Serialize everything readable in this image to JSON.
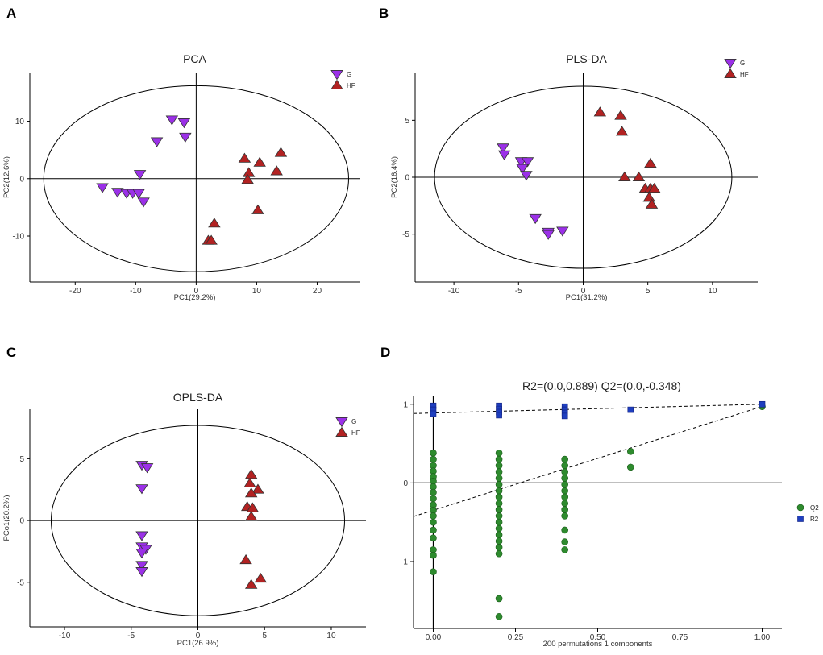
{
  "colors": {
    "G": "#9b30e8",
    "HF": "#b22222",
    "Q2": "#2e8b2e",
    "R2": "#1f3fbf",
    "edge": "#333333"
  },
  "chart_data": [
    {
      "id": "A",
      "panel_label": "A",
      "type": "scatter",
      "title": "PCA",
      "xlabel": "PC1(29.2%)",
      "ylabel": "PC2(12.6%)",
      "xlim": [
        -27.5,
        27
      ],
      "ylim": [
        -18,
        18.5
      ],
      "xticks": [
        -20,
        -10,
        0,
        10,
        20
      ],
      "yticks": [
        -10,
        0,
        10
      ],
      "ellipse": {
        "cx": 0,
        "cy": 0,
        "rx": 25.2,
        "ry": 16.2
      },
      "legend": [
        {
          "label": "G",
          "shape": "triangle-down",
          "color": "#9b30e8"
        },
        {
          "label": "HF",
          "shape": "triangle-up",
          "color": "#b22222"
        }
      ],
      "series": [
        {
          "name": "G",
          "shape": "triangle-down",
          "points": [
            [
              -4,
              10.3
            ],
            [
              -2,
              9.8
            ],
            [
              -1.8,
              7.3
            ],
            [
              -6.5,
              6.5
            ],
            [
              -15.5,
              -1.5
            ],
            [
              -13,
              -2.3
            ],
            [
              -11.5,
              -2.5
            ],
            [
              -10.5,
              -2.5
            ],
            [
              -9.5,
              -2.5
            ],
            [
              -9.3,
              0.8
            ],
            [
              -8.7,
              -4
            ]
          ]
        },
        {
          "name": "HF",
          "shape": "triangle-up",
          "points": [
            [
              8,
              3.5
            ],
            [
              10.5,
              2.8
            ],
            [
              14,
              4.5
            ],
            [
              8.7,
              1
            ],
            [
              13.3,
              1.3
            ],
            [
              8.5,
              -0.2
            ],
            [
              10.2,
              -5.5
            ],
            [
              3,
              -7.8
            ],
            [
              2,
              -10.8
            ],
            [
              2.5,
              -10.8
            ]
          ]
        }
      ]
    },
    {
      "id": "B",
      "panel_label": "B",
      "type": "scatter",
      "title": "PLS-DA",
      "xlabel": "PC1(31.2%)",
      "ylabel": "PC2(16.4%)",
      "xlim": [
        -13,
        13.5
      ],
      "ylim": [
        -9.2,
        9.2
      ],
      "xticks": [
        -10,
        -5,
        0,
        5,
        10
      ],
      "yticks": [
        -5,
        0,
        5
      ],
      "ellipse": {
        "cx": 0,
        "cy": 0,
        "rx": 11.5,
        "ry": 8
      },
      "legend": [
        {
          "label": "G",
          "shape": "triangle-down",
          "color": "#9b30e8"
        },
        {
          "label": "HF",
          "shape": "triangle-up",
          "color": "#b22222"
        }
      ],
      "series": [
        {
          "name": "G",
          "shape": "triangle-down",
          "points": [
            [
              -6.2,
              2.6
            ],
            [
              -6.1,
              2
            ],
            [
              -4.8,
              1.4
            ],
            [
              -4.3,
              1.4
            ],
            [
              -4.7,
              0.8
            ],
            [
              -4.4,
              0.2
            ],
            [
              -3.7,
              -3.6
            ],
            [
              -2.7,
              -4.8
            ],
            [
              -2.7,
              -5
            ],
            [
              -1.6,
              -4.7
            ]
          ]
        },
        {
          "name": "HF",
          "shape": "triangle-up",
          "points": [
            [
              1.3,
              5.7
            ],
            [
              2.9,
              5.4
            ],
            [
              3,
              4
            ],
            [
              5.2,
              1.2
            ],
            [
              3.2,
              0
            ],
            [
              4.3,
              0
            ],
            [
              4.8,
              -1
            ],
            [
              5.2,
              -1
            ],
            [
              5.5,
              -1
            ],
            [
              5.1,
              -1.8
            ],
            [
              5.3,
              -2.4
            ]
          ]
        }
      ]
    },
    {
      "id": "C",
      "panel_label": "C",
      "type": "scatter",
      "title": "OPLS-DA",
      "xlabel": "PC1(26.9%)",
      "ylabel": "PCo1(20.2%)",
      "xlim": [
        -12.6,
        12.6
      ],
      "ylim": [
        -8.6,
        9
      ],
      "xticks": [
        -10,
        -5,
        0,
        5,
        10
      ],
      "yticks": [
        -5,
        0,
        5
      ],
      "ellipse": {
        "cx": 0,
        "cy": 0,
        "rx": 11,
        "ry": 7.7
      },
      "legend": [
        {
          "label": "G",
          "shape": "triangle-down",
          "color": "#9b30e8"
        },
        {
          "label": "HF",
          "shape": "triangle-up",
          "color": "#b22222"
        }
      ],
      "series": [
        {
          "name": "G",
          "shape": "triangle-down",
          "points": [
            [
              -4.2,
              4.5
            ],
            [
              -3.8,
              4.3
            ],
            [
              -4.2,
              2.6
            ],
            [
              -4.2,
              -1.2
            ],
            [
              -4.2,
              -2.1
            ],
            [
              -3.9,
              -2.3
            ],
            [
              -4.2,
              -2.6
            ],
            [
              -4.2,
              -3.6
            ],
            [
              -4.2,
              -4.1
            ]
          ]
        },
        {
          "name": "HF",
          "shape": "triangle-up",
          "points": [
            [
              4,
              3.7
            ],
            [
              3.9,
              3
            ],
            [
              4.5,
              2.5
            ],
            [
              4,
              2.2
            ],
            [
              3.7,
              1.1
            ],
            [
              4.1,
              1
            ],
            [
              4,
              0.3
            ],
            [
              3.6,
              -3.2
            ],
            [
              4.7,
              -4.7
            ],
            [
              4,
              -5.2
            ]
          ]
        }
      ]
    },
    {
      "id": "D",
      "panel_label": "D",
      "type": "scatter",
      "title": "R2=(0.0,0.889)   Q2=(0.0,-0.348)",
      "xlabel": "200 permutations 1 components",
      "ylabel": "",
      "xlim": [
        -0.06,
        1.06
      ],
      "ylim": [
        -1.85,
        1.1
      ],
      "xticks": [
        0.0,
        0.25,
        0.5,
        0.75,
        1.0
      ],
      "xticklabels": [
        "0.00",
        "0.25",
        "0.50",
        "0.75",
        "1.00"
      ],
      "yticks": [
        -1,
        0,
        1
      ],
      "yticklabels": [
        "-1",
        "0",
        "1"
      ],
      "vline_x": 0,
      "hline_y": 0,
      "regression_lines": [
        {
          "name": "R2",
          "intercept": 0.889,
          "slope": 0.111
        },
        {
          "name": "Q2",
          "intercept": -0.348,
          "slope": 1.32
        }
      ],
      "legend": [
        {
          "label": "Q2",
          "shape": "circle",
          "color": "#2e8b2e"
        },
        {
          "label": "R2",
          "shape": "square",
          "color": "#1f3fbf"
        }
      ],
      "series": [
        {
          "name": "Q2",
          "shape": "circle",
          "points": [
            [
              0,
              0.38
            ],
            [
              0,
              0.3
            ],
            [
              0,
              0.22
            ],
            [
              0,
              0.15
            ],
            [
              0,
              0.08
            ],
            [
              0,
              0.02
            ],
            [
              0,
              -0.05
            ],
            [
              0,
              -0.12
            ],
            [
              0,
              -0.2
            ],
            [
              0,
              -0.28
            ],
            [
              0,
              -0.35
            ],
            [
              0,
              -0.42
            ],
            [
              0,
              -0.5
            ],
            [
              0,
              -0.6
            ],
            [
              0,
              -0.7
            ],
            [
              0,
              -0.85
            ],
            [
              0,
              -0.92
            ],
            [
              0,
              -1.13
            ],
            [
              0.2,
              0.38
            ],
            [
              0.2,
              0.3
            ],
            [
              0.2,
              0.22
            ],
            [
              0.2,
              0.14
            ],
            [
              0.2,
              0.06
            ],
            [
              0.2,
              -0.02
            ],
            [
              0.2,
              -0.1
            ],
            [
              0.2,
              -0.18
            ],
            [
              0.2,
              -0.26
            ],
            [
              0.2,
              -0.34
            ],
            [
              0.2,
              -0.42
            ],
            [
              0.2,
              -0.5
            ],
            [
              0.2,
              -0.58
            ],
            [
              0.2,
              -0.66
            ],
            [
              0.2,
              -0.74
            ],
            [
              0.2,
              -0.82
            ],
            [
              0.2,
              -0.9
            ],
            [
              0.2,
              -1.47
            ],
            [
              0.2,
              -1.7
            ],
            [
              0.4,
              0.3
            ],
            [
              0.4,
              0.22
            ],
            [
              0.4,
              0.14
            ],
            [
              0.4,
              0.06
            ],
            [
              0.4,
              -0.02
            ],
            [
              0.4,
              -0.1
            ],
            [
              0.4,
              -0.18
            ],
            [
              0.4,
              -0.26
            ],
            [
              0.4,
              -0.34
            ],
            [
              0.4,
              -0.42
            ],
            [
              0.4,
              -0.6
            ],
            [
              0.4,
              -0.75
            ],
            [
              0.4,
              -0.85
            ],
            [
              0.6,
              0.4
            ],
            [
              0.6,
              0.2
            ],
            [
              1.0,
              0.97
            ]
          ]
        },
        {
          "name": "R2",
          "shape": "square",
          "points": [
            [
              0,
              0.98
            ],
            [
              0,
              0.93
            ],
            [
              0,
              0.88
            ],
            [
              0.2,
              0.98
            ],
            [
              0.2,
              0.94
            ],
            [
              0.2,
              0.9
            ],
            [
              0.2,
              0.86
            ],
            [
              0.4,
              0.97
            ],
            [
              0.4,
              0.93
            ],
            [
              0.4,
              0.89
            ],
            [
              0.4,
              0.85
            ],
            [
              0.6,
              0.93
            ],
            [
              1.0,
              1.0
            ]
          ]
        }
      ]
    }
  ]
}
